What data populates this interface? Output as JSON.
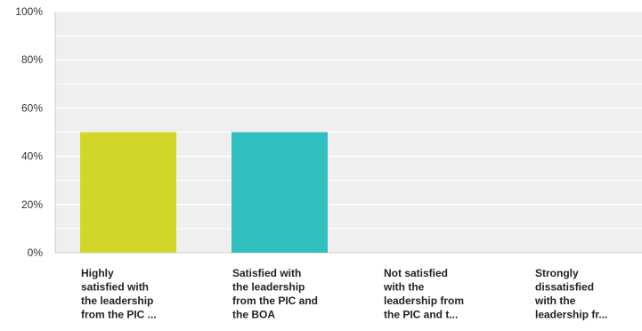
{
  "chart_data": {
    "type": "bar",
    "title": "",
    "xlabel": "",
    "ylabel": "",
    "ylim": [
      0,
      100
    ],
    "y_ticks": [
      "0%",
      "20%",
      "40%",
      "60%",
      "80%",
      "100%"
    ],
    "y_tick_values": [
      0,
      20,
      40,
      60,
      80,
      100
    ],
    "grid": true,
    "categories": [
      [
        "Highly",
        "satisfied with",
        "the leadership",
        "from the PIC ..."
      ],
      [
        "Satisfied with",
        "the leadership",
        "from the PIC and",
        "the BOA"
      ],
      [
        "Not satisfied",
        "with the",
        "leadership from",
        "the PIC and t..."
      ],
      [
        "Strongly",
        "dissatisfied",
        "with the",
        "leadership fr..."
      ]
    ],
    "values": [
      50,
      50,
      0,
      0
    ],
    "colors": [
      "#d2d628",
      "#32bfc0",
      "#d2d628",
      "#32bfc0"
    ],
    "plot_background": "#efefef",
    "gridline_color": "#ffffff"
  }
}
